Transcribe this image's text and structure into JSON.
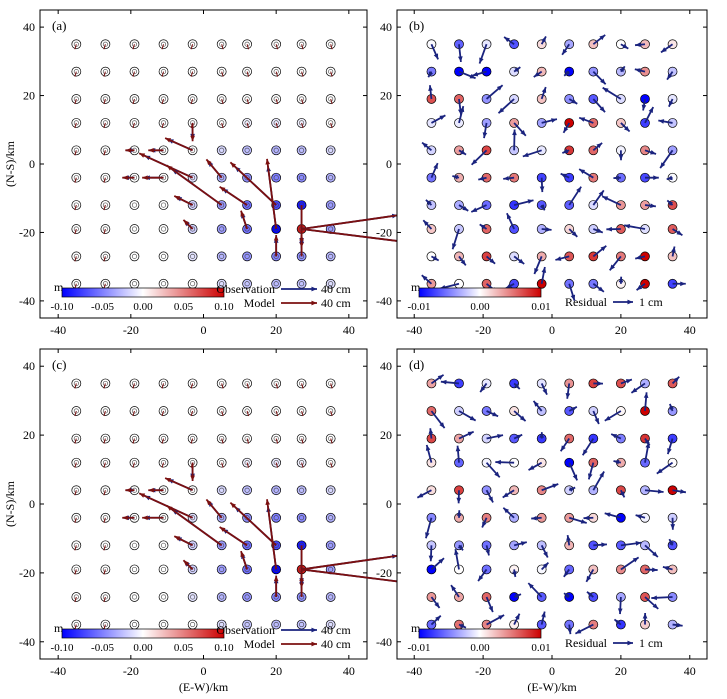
{
  "figure": {
    "xlabel": "(E-W)/km",
    "ylabel": "(N-S)/km",
    "xticks": [
      -40,
      -20,
      0,
      20,
      40
    ],
    "yticks": [
      40,
      20,
      0,
      -20,
      -40
    ],
    "colorbar_unit": "m",
    "colors": {
      "negative": "#0000ff",
      "zero": "#ffffff",
      "positive": "#cc0000",
      "arrow_obs": "#1a237e",
      "arrow_model": "#7b1010",
      "residual": "#1a237e"
    }
  },
  "chart_data": [
    {
      "panel_label": "(a)",
      "type": "scatter",
      "xlim": [
        -45,
        45
      ],
      "ylim": [
        -45,
        45
      ],
      "station_x": [
        -35,
        -27,
        -19,
        -11,
        -3,
        5,
        12,
        20,
        27,
        35
      ],
      "station_y": [
        35,
        27,
        19,
        12,
        4,
        -4,
        -12,
        -19,
        -27,
        -35
      ],
      "vertical_colorscale_m": [
        -0.1,
        0.1
      ],
      "colorbar_ticks": [
        "-0.10",
        "-0.05",
        "0.00",
        "0.05",
        "0.10"
      ],
      "legend": [
        {
          "label": "Observation",
          "value": "40 cm",
          "color": "#1a237e"
        },
        {
          "label": "Model",
          "value": "40 cm",
          "color": "#7b1010"
        }
      ],
      "vectors_cm": [
        {
          "x": -3,
          "y": 12,
          "dx": 0,
          "dy": -12
        },
        {
          "x": -3,
          "y": 4,
          "dx": -18,
          "dy": 8
        },
        {
          "x": -11,
          "y": 4,
          "dx": -10,
          "dy": 0
        },
        {
          "x": -19,
          "y": 4,
          "dx": -6,
          "dy": 0
        },
        {
          "x": -3,
          "y": -4,
          "dx": -35,
          "dy": 16
        },
        {
          "x": -11,
          "y": -4,
          "dx": -14,
          "dy": 0
        },
        {
          "x": -19,
          "y": -4,
          "dx": -8,
          "dy": 0
        },
        {
          "x": 5,
          "y": -4,
          "dx": -10,
          "dy": 12
        },
        {
          "x": 5,
          "y": -12,
          "dx": -36,
          "dy": 26
        },
        {
          "x": -3,
          "y": -12,
          "dx": -12,
          "dy": 6
        },
        {
          "x": 12,
          "y": -12,
          "dx": -18,
          "dy": 12
        },
        {
          "x": 20,
          "y": -12,
          "dx": -30,
          "dy": 28
        },
        {
          "x": 20,
          "y": -19,
          "dx": -6,
          "dy": 46
        },
        {
          "x": 27,
          "y": -12,
          "dx": 0,
          "dy": -28
        },
        {
          "x": 27,
          "y": -19,
          "dx": 70,
          "dy": 10
        },
        {
          "x": 27,
          "y": -19,
          "dx": 80,
          "dy": -10
        },
        {
          "x": 20,
          "y": -27,
          "dx": 0,
          "dy": 14
        },
        {
          "x": 27,
          "y": -27,
          "dx": 0,
          "dy": 14
        },
        {
          "x": 12,
          "y": -19,
          "dx": -4,
          "dy": 12
        },
        {
          "x": -3,
          "y": -19,
          "dx": -6,
          "dy": 6
        }
      ]
    },
    {
      "panel_label": "(b)",
      "type": "scatter",
      "xlim": [
        -45,
        45
      ],
      "ylim": [
        -45,
        45
      ],
      "vertical_colorscale_m": [
        -0.015,
        0.015
      ],
      "colorbar_ticks": [
        "-0.01",
        "0.00",
        "0.01"
      ],
      "legend": [
        {
          "label": "Residual",
          "value": "1 cm",
          "color": "#1a237e"
        }
      ]
    },
    {
      "panel_label": "(c)",
      "type": "scatter",
      "xlim": [
        -45,
        45
      ],
      "ylim": [
        -45,
        45
      ],
      "vertical_colorscale_m": [
        -0.1,
        0.1
      ],
      "colorbar_ticks": [
        "-0.10",
        "-0.05",
        "0.00",
        "0.05",
        "0.10"
      ],
      "legend": [
        {
          "label": "Observation",
          "value": "40 cm",
          "color": "#1a237e"
        },
        {
          "label": "Model",
          "value": "40 cm",
          "color": "#7b1010"
        }
      ]
    },
    {
      "panel_label": "(d)",
      "type": "scatter",
      "xlim": [
        -45,
        45
      ],
      "ylim": [
        -45,
        45
      ],
      "vertical_colorscale_m": [
        -0.015,
        0.015
      ],
      "colorbar_ticks": [
        "-0.01",
        "0.00",
        "0.01"
      ],
      "legend": [
        {
          "label": "Residual",
          "value": "1 cm",
          "color": "#1a237e"
        }
      ]
    }
  ]
}
